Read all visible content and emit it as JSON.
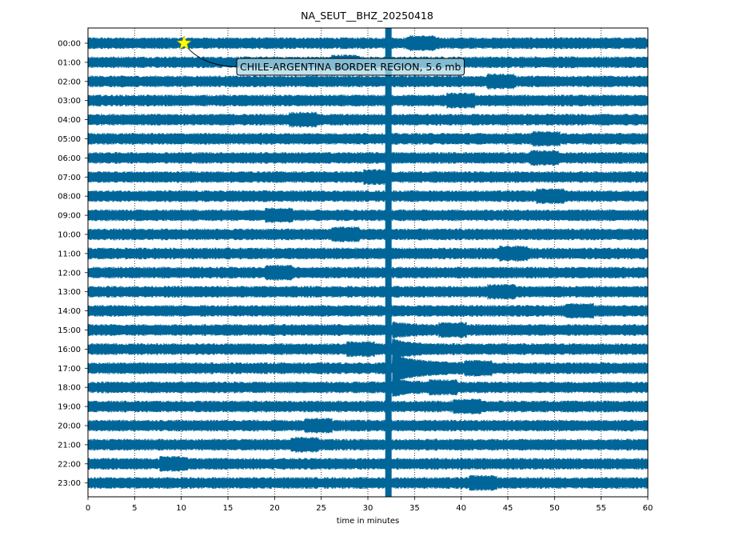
{
  "chart_data": {
    "type": "line",
    "title": "NA_SEUT__BHZ_20250418",
    "xlabel": "time in minutes",
    "ylabel": "",
    "xlim": [
      0,
      60
    ],
    "xticks": [
      0,
      5,
      10,
      15,
      20,
      25,
      30,
      35,
      40,
      45,
      50,
      55,
      60
    ],
    "xtick_labels": [
      "0",
      "5",
      "10",
      "15",
      "20",
      "25",
      "30",
      "35",
      "40",
      "45",
      "50",
      "55",
      "60"
    ],
    "rows": [
      "00:00",
      "01:00",
      "02:00",
      "03:00",
      "04:00",
      "05:00",
      "06:00",
      "07:00",
      "08:00",
      "09:00",
      "10:00",
      "11:00",
      "12:00",
      "13:00",
      "14:00",
      "15:00",
      "16:00",
      "17:00",
      "18:00",
      "19:00",
      "20:00",
      "21:00",
      "22:00",
      "23:00"
    ],
    "trace_color": "#006699",
    "grid": "vertical dotted",
    "event": {
      "label": "CHILE-ARGENTINA BORDER REGION, 5.6 mb",
      "row": "00:00",
      "time_minutes": 10.3,
      "marker": "star",
      "marker_color": "#ffff00"
    },
    "features": {
      "glitch_time_minutes": 32.2,
      "arrival_time_minutes": 32.6,
      "arrival_rows": [
        "15:00",
        "16:00",
        "17:00",
        "18:00"
      ]
    }
  }
}
